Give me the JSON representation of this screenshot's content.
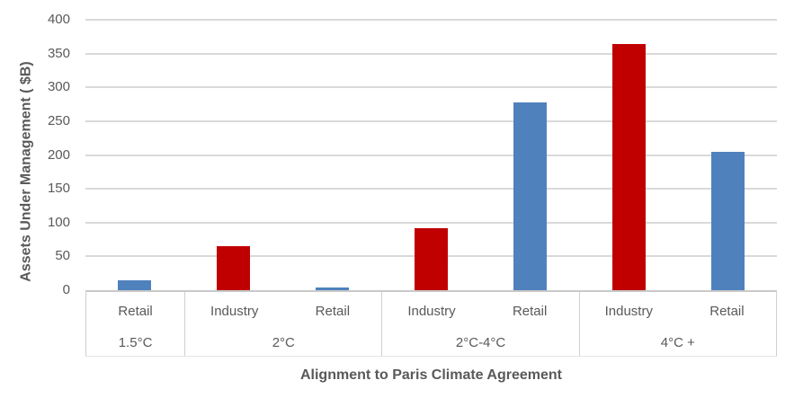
{
  "chart_data": {
    "type": "bar",
    "title": "",
    "xlabel": "Alignment to Paris Climate Agreement",
    "ylabel": "Assets Under Management ( $B)",
    "ylim": [
      0,
      400
    ],
    "ytick_interval": 50,
    "grid": true,
    "legend_position": "none",
    "categories": [
      "Retail",
      "Industry",
      "Retail",
      "Industry",
      "Retail",
      "Industry",
      "Retail"
    ],
    "groups": [
      {
        "label": "1.5°C",
        "span": 1
      },
      {
        "label": "2°C",
        "span": 2
      },
      {
        "label": "2°C-4°C",
        "span": 2
      },
      {
        "label": "4°C +",
        "span": 2
      }
    ],
    "bars": [
      {
        "group": "1.5°C",
        "label": "Retail",
        "value": 15,
        "color": "#4F81BD"
      },
      {
        "group": "2°C",
        "label": "Industry",
        "value": 65,
        "color": "#C00000"
      },
      {
        "group": "2°C",
        "label": "Retail",
        "value": 4,
        "color": "#4F81BD"
      },
      {
        "group": "2°C-4°C",
        "label": "Industry",
        "value": 92,
        "color": "#C00000"
      },
      {
        "group": "2°C-4°C",
        "label": "Retail",
        "value": 278,
        "color": "#4F81BD"
      },
      {
        "group": "4°C +",
        "label": "Industry",
        "value": 364,
        "color": "#C00000"
      },
      {
        "group": "4°C +",
        "label": "Retail",
        "value": 205,
        "color": "#4F81BD"
      }
    ],
    "colors": {
      "retail_blue": "#4F81BD",
      "industry_red": "#C00000",
      "gridline": "#D9D9D9",
      "text": "#595959"
    }
  }
}
